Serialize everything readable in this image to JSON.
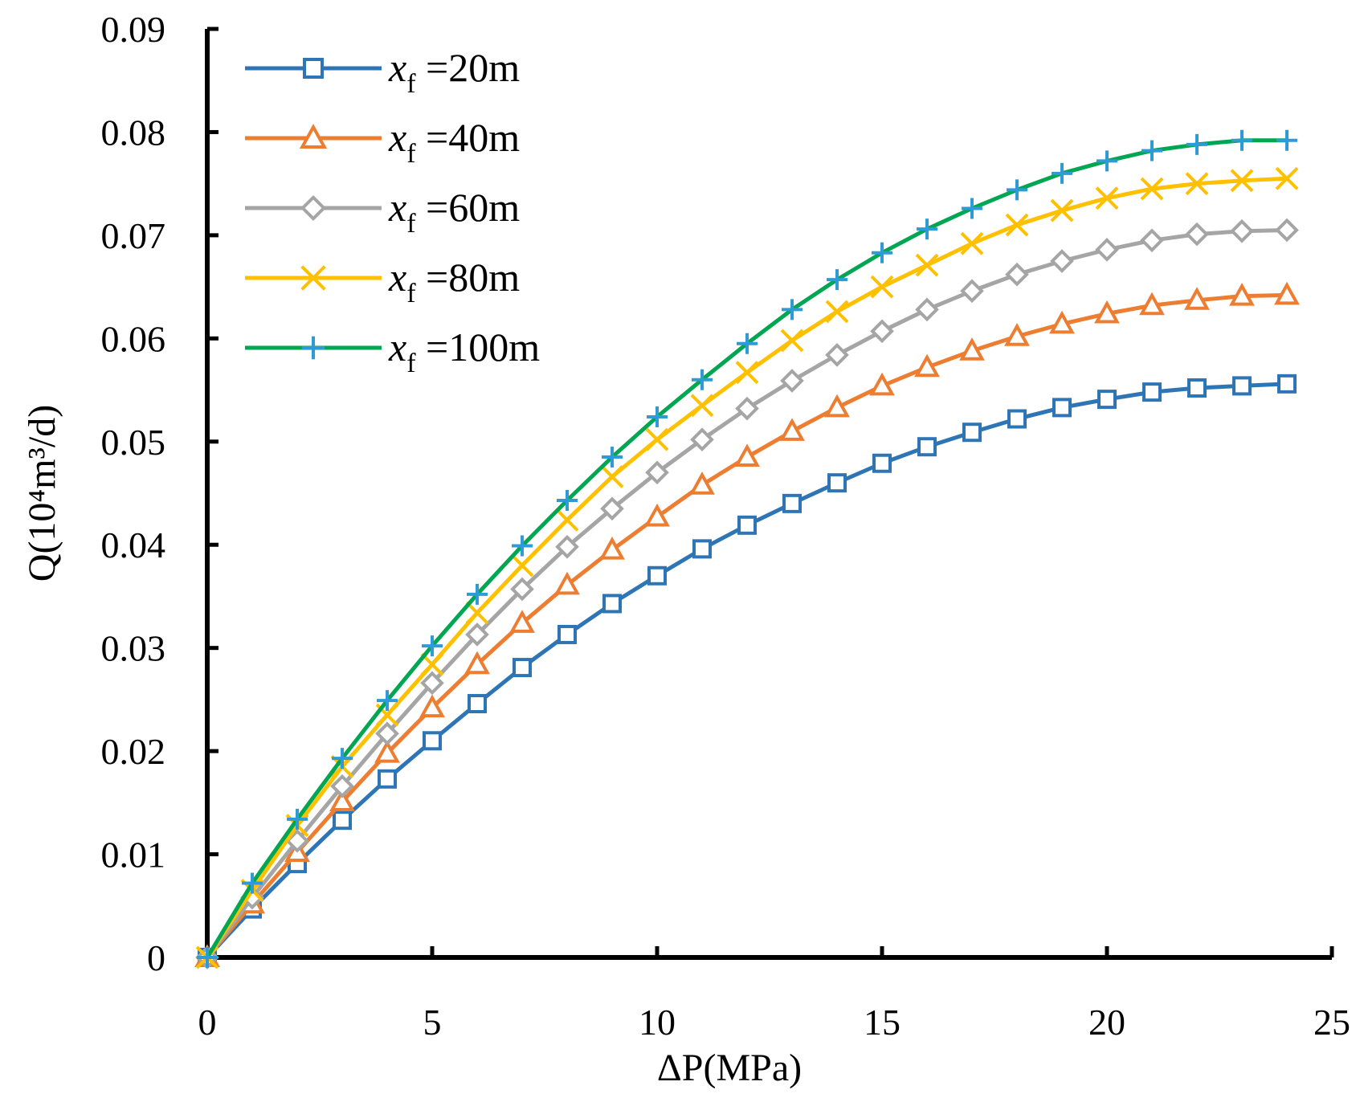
{
  "chart_data": {
    "type": "line",
    "title": "",
    "xlabel": "ΔP(MPa)",
    "ylabel": "Q(10⁴m³/d)",
    "xlim": [
      0,
      25
    ],
    "ylim": [
      0,
      0.09
    ],
    "xticks": [
      0,
      5,
      10,
      15,
      20,
      25
    ],
    "yticks": [
      0,
      0.01,
      0.02,
      0.03,
      0.04,
      0.05,
      0.06,
      0.07,
      0.08,
      0.09
    ],
    "xtick_labels": [
      "0",
      "5",
      "10",
      "15",
      "20",
      "25"
    ],
    "ytick_labels": [
      "0",
      "0.01",
      "0.02",
      "0.03",
      "0.04",
      "0.05",
      "0.06",
      "0.07",
      "0.08",
      "0.09"
    ],
    "grid": false,
    "legend_position": "top-left",
    "x": [
      0,
      1,
      2,
      3,
      4,
      5,
      6,
      7,
      8,
      9,
      10,
      11,
      12,
      13,
      14,
      15,
      16,
      17,
      18,
      19,
      20,
      21,
      22,
      23,
      24
    ],
    "series": [
      {
        "name": "xf =20m",
        "legend_var": "x",
        "legend_sub": "f",
        "legend_rest": " =20m",
        "color": "#2E75B6",
        "marker": "square",
        "values": [
          0,
          0.0047,
          0.0091,
          0.0133,
          0.0173,
          0.021,
          0.0246,
          0.0281,
          0.0313,
          0.0343,
          0.037,
          0.0396,
          0.0419,
          0.044,
          0.046,
          0.0479,
          0.0495,
          0.0509,
          0.0522,
          0.0533,
          0.0541,
          0.0548,
          0.0552,
          0.0554,
          0.0556
        ]
      },
      {
        "name": "xf =40m",
        "legend_var": "x",
        "legend_sub": "f",
        "legend_rest": " =40m",
        "color": "#ED7D31",
        "marker": "triangle",
        "values": [
          0,
          0.0052,
          0.0102,
          0.0151,
          0.0198,
          0.0242,
          0.0284,
          0.0324,
          0.0361,
          0.0395,
          0.0427,
          0.0458,
          0.0485,
          0.051,
          0.0533,
          0.0554,
          0.0572,
          0.0588,
          0.0602,
          0.0614,
          0.0624,
          0.0632,
          0.0637,
          0.0641,
          0.0642
        ]
      },
      {
        "name": "xf =60m",
        "legend_var": "x",
        "legend_sub": "f",
        "legend_rest": " =60m",
        "color": "#A5A5A5",
        "marker": "diamond",
        "values": [
          0,
          0.0058,
          0.0113,
          0.0166,
          0.0217,
          0.0266,
          0.0313,
          0.0357,
          0.0398,
          0.0435,
          0.047,
          0.0502,
          0.0532,
          0.0559,
          0.0584,
          0.0607,
          0.0628,
          0.0646,
          0.0662,
          0.0675,
          0.0686,
          0.0695,
          0.0701,
          0.0704,
          0.0705
        ]
      },
      {
        "name": "xf =80m",
        "legend_var": "x",
        "legend_sub": "f",
        "legend_rest": " =80m",
        "color": "#FFC000",
        "marker": "x",
        "values": [
          0,
          0.0065,
          0.0128,
          0.0185,
          0.0235,
          0.0284,
          0.0334,
          0.038,
          0.0424,
          0.0466,
          0.0502,
          0.0535,
          0.0567,
          0.0598,
          0.0626,
          0.065,
          0.0671,
          0.0692,
          0.071,
          0.0724,
          0.0736,
          0.0745,
          0.075,
          0.0753,
          0.0755
        ]
      },
      {
        "name": "xf =100m",
        "legend_var": "x",
        "legend_sub": "f",
        "legend_rest": " =100m",
        "color": "#00A651",
        "marker_color": "#2E9BD6",
        "marker": "plus",
        "values": [
          0,
          0.0072,
          0.0134,
          0.0193,
          0.0249,
          0.0302,
          0.0352,
          0.0399,
          0.0443,
          0.0485,
          0.0524,
          0.056,
          0.0595,
          0.0628,
          0.0657,
          0.0683,
          0.0706,
          0.0726,
          0.0744,
          0.076,
          0.0772,
          0.0782,
          0.0788,
          0.0792,
          0.0792
        ]
      }
    ]
  }
}
